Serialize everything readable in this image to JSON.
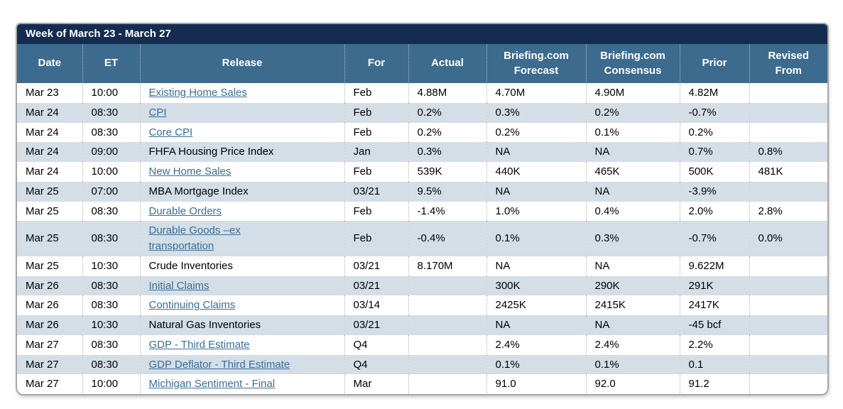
{
  "page": {
    "week_title": "Week of March 23 - March 27"
  },
  "colors": {
    "title_bar_bg": "#142c50",
    "header_bg": "#3c6b8e",
    "alt_row_bg": "#d4dee7",
    "link_color": "#3a6e96"
  },
  "table": {
    "columns": [
      {
        "key": "date",
        "label": "Date"
      },
      {
        "key": "et",
        "label": "ET"
      },
      {
        "key": "release",
        "label": "Release"
      },
      {
        "key": "for",
        "label": "For"
      },
      {
        "key": "actual",
        "label": "Actual"
      },
      {
        "key": "forecast",
        "label": "Briefing.com\nForecast"
      },
      {
        "key": "consensus",
        "label": "Briefing.com\nConsensus"
      },
      {
        "key": "prior",
        "label": "Prior"
      },
      {
        "key": "revised",
        "label": "Revised\nFrom"
      }
    ],
    "rows": [
      {
        "date": "Mar 23",
        "et": "10:00",
        "release": "Existing Home Sales",
        "link": true,
        "for": "Feb",
        "actual": "4.88M",
        "forecast": "4.70M",
        "consensus": "4.90M",
        "prior": "4.82M",
        "revised": ""
      },
      {
        "date": "Mar 24",
        "et": "08:30",
        "release": "CPI",
        "link": true,
        "for": "Feb",
        "actual": "0.2%",
        "forecast": "0.3%",
        "consensus": "0.2%",
        "prior": "-0.7%",
        "revised": ""
      },
      {
        "date": "Mar 24",
        "et": "08:30",
        "release": "Core CPI",
        "link": true,
        "for": "Feb",
        "actual": "0.2%",
        "forecast": "0.2%",
        "consensus": "0.1%",
        "prior": "0.2%",
        "revised": ""
      },
      {
        "date": "Mar 24",
        "et": "09:00",
        "release": "FHFA Housing Price Index",
        "link": false,
        "for": "Jan",
        "actual": "0.3%",
        "forecast": "NA",
        "consensus": "NA",
        "prior": "0.7%",
        "revised": "0.8%"
      },
      {
        "date": "Mar 24",
        "et": "10:00",
        "release": "New Home Sales",
        "link": true,
        "for": "Feb",
        "actual": "539K",
        "forecast": "440K",
        "consensus": "465K",
        "prior": "500K",
        "revised": "481K"
      },
      {
        "date": "Mar 25",
        "et": "07:00",
        "release": "MBA Mortgage Index",
        "link": false,
        "for": "03/21",
        "actual": "9.5%",
        "forecast": "NA",
        "consensus": "NA",
        "prior": "-3.9%",
        "revised": ""
      },
      {
        "date": "Mar 25",
        "et": "08:30",
        "release": "Durable Orders",
        "link": true,
        "for": "Feb",
        "actual": "-1.4%",
        "forecast": "1.0%",
        "consensus": "0.4%",
        "prior": "2.0%",
        "revised": "2.8%"
      },
      {
        "date": "Mar 25",
        "et": "08:30",
        "release": "Durable Goods –ex\ntransportation",
        "link": true,
        "for": "Feb",
        "actual": "-0.4%",
        "forecast": "0.1%",
        "consensus": "0.3%",
        "prior": "-0.7%",
        "revised": "0.0%"
      },
      {
        "date": "Mar 25",
        "et": "10:30",
        "release": "Crude Inventories",
        "link": false,
        "for": "03/21",
        "actual": "8.170M",
        "forecast": "NA",
        "consensus": "NA",
        "prior": "9.622M",
        "revised": ""
      },
      {
        "date": "Mar 26",
        "et": "08:30",
        "release": "Initial Claims",
        "link": true,
        "for": "03/21",
        "actual": "",
        "forecast": "300K",
        "consensus": "290K",
        "prior": "291K",
        "revised": ""
      },
      {
        "date": "Mar 26",
        "et": "08:30",
        "release": "Continuing Claims",
        "link": true,
        "for": "03/14",
        "actual": "",
        "forecast": "2425K",
        "consensus": "2415K",
        "prior": "2417K",
        "revised": ""
      },
      {
        "date": "Mar 26",
        "et": "10:30",
        "release": "Natural Gas Inventories",
        "link": false,
        "for": "03/21",
        "actual": "",
        "forecast": "NA",
        "consensus": "NA",
        "prior": "-45 bcf",
        "revised": ""
      },
      {
        "date": "Mar 27",
        "et": "08:30",
        "release": "GDP - Third Estimate",
        "link": true,
        "for": "Q4",
        "actual": "",
        "forecast": "2.4%",
        "consensus": "2.4%",
        "prior": "2.2%",
        "revised": ""
      },
      {
        "date": "Mar 27",
        "et": "08:30",
        "release": "GDP Deflator - Third Estimate",
        "link": true,
        "for": "Q4",
        "actual": "",
        "forecast": "0.1%",
        "consensus": "0.1%",
        "prior": "0.1",
        "revised": ""
      },
      {
        "date": "Mar 27",
        "et": "10:00",
        "release": "Michigan Sentiment - Final",
        "link": true,
        "for": "Mar",
        "actual": "",
        "forecast": "91.0",
        "consensus": "92.0",
        "prior": "91.2",
        "revised": ""
      }
    ]
  }
}
